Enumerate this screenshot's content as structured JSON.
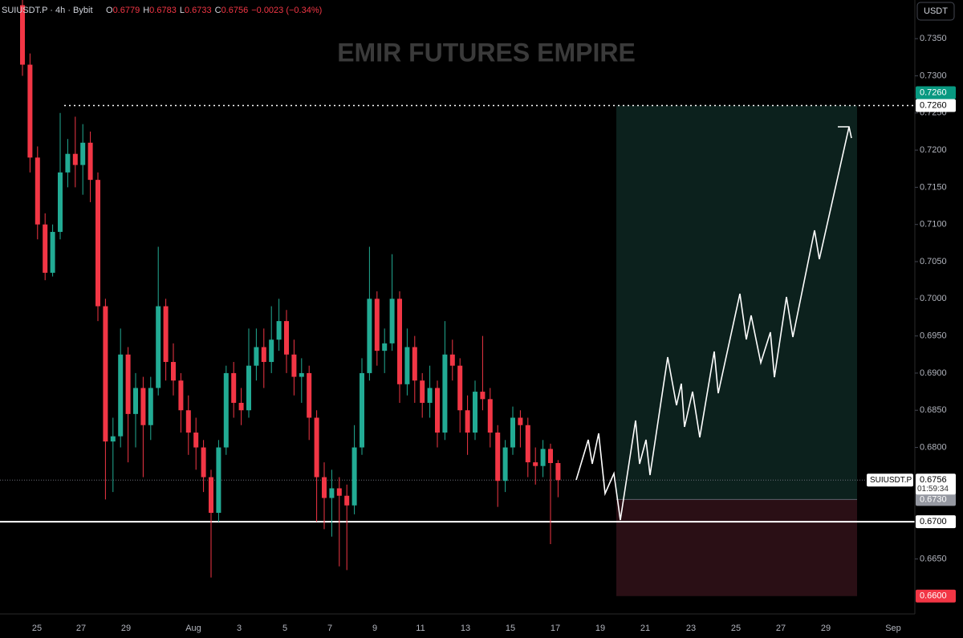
{
  "header": {
    "symbol": "SUIUSDT.P · 4h · Bybit",
    "ohlc": [
      {
        "label": "O",
        "value": "0.6779"
      },
      {
        "label": "H",
        "value": "0.6783"
      },
      {
        "label": "L",
        "value": "0.6733"
      },
      {
        "label": "C",
        "value": "0.6756"
      }
    ],
    "change": "−0.0023 (−0.34%)"
  },
  "watermark": "EMIR FUTURES EMPIRE",
  "currency": "USDT",
  "chart_data": {
    "type": "candlestick",
    "up_color": "#22ab94",
    "down_color": "#f23645",
    "ylim": [
      0.6576,
      0.7402
    ],
    "yticks": [
      {
        "value": 0.665,
        "label": "0.6650"
      },
      {
        "value": 0.68,
        "label": "0.6800"
      },
      {
        "value": 0.685,
        "label": "0.6850"
      },
      {
        "value": 0.69,
        "label": "0.6900"
      },
      {
        "value": 0.695,
        "label": "0.6950"
      },
      {
        "value": 0.7,
        "label": "0.7000"
      },
      {
        "value": 0.705,
        "label": "0.7050"
      },
      {
        "value": 0.71,
        "label": "0.7100"
      },
      {
        "value": 0.715,
        "label": "0.7150"
      },
      {
        "value": 0.72,
        "label": "0.7200"
      },
      {
        "value": 0.725,
        "label": "0.7250"
      },
      {
        "value": 0.73,
        "label": "0.7300"
      },
      {
        "value": 0.735,
        "label": "0.7350"
      }
    ],
    "xticks": [
      "25",
      "27",
      "29",
      "Aug",
      "3",
      "5",
      "7",
      "9",
      "11",
      "13",
      "15",
      "17",
      "19",
      "21",
      "23",
      "25",
      "27",
      "29",
      "Sep"
    ],
    "ohlc": [
      [
        0.7395,
        0.7402,
        0.73,
        0.7315
      ],
      [
        0.7315,
        0.733,
        0.717,
        0.719
      ],
      [
        0.719,
        0.7205,
        0.708,
        0.71
      ],
      [
        0.71,
        0.7115,
        0.7025,
        0.7035
      ],
      [
        0.7035,
        0.71,
        0.703,
        0.709
      ],
      [
        0.709,
        0.725,
        0.708,
        0.717
      ],
      [
        0.717,
        0.7215,
        0.715,
        0.7195
      ],
      [
        0.7195,
        0.7245,
        0.715,
        0.718
      ],
      [
        0.718,
        0.7235,
        0.714,
        0.721
      ],
      [
        0.721,
        0.7225,
        0.713,
        0.716
      ],
      [
        0.716,
        0.717,
        0.697,
        0.699
      ],
      [
        0.699,
        0.7,
        0.673,
        0.6808
      ],
      [
        0.6808,
        0.684,
        0.674,
        0.6815
      ],
      [
        0.6815,
        0.696,
        0.68,
        0.6925
      ],
      [
        0.6925,
        0.6935,
        0.678,
        0.6845
      ],
      [
        0.6845,
        0.69,
        0.68,
        0.688
      ],
      [
        0.688,
        0.6895,
        0.676,
        0.683
      ],
      [
        0.683,
        0.6895,
        0.681,
        0.688
      ],
      [
        0.688,
        0.707,
        0.687,
        0.699
      ],
      [
        0.699,
        0.7,
        0.689,
        0.6915
      ],
      [
        0.6915,
        0.694,
        0.687,
        0.689
      ],
      [
        0.689,
        0.69,
        0.682,
        0.685
      ],
      [
        0.685,
        0.687,
        0.679,
        0.682
      ],
      [
        0.682,
        0.684,
        0.677,
        0.68
      ],
      [
        0.68,
        0.681,
        0.674,
        0.676
      ],
      [
        0.676,
        0.677,
        0.6625,
        0.6712
      ],
      [
        0.6712,
        0.681,
        0.67,
        0.68
      ],
      [
        0.68,
        0.691,
        0.679,
        0.69
      ],
      [
        0.69,
        0.6915,
        0.684,
        0.686
      ],
      [
        0.686,
        0.688,
        0.683,
        0.685
      ],
      [
        0.685,
        0.696,
        0.684,
        0.691
      ],
      [
        0.691,
        0.696,
        0.689,
        0.6935
      ],
      [
        0.6935,
        0.696,
        0.688,
        0.6915
      ],
      [
        0.6915,
        0.699,
        0.69,
        0.6945
      ],
      [
        0.6945,
        0.7,
        0.693,
        0.697
      ],
      [
        0.697,
        0.6985,
        0.69,
        0.6925
      ],
      [
        0.6925,
        0.6945,
        0.687,
        0.6895
      ],
      [
        0.6895,
        0.692,
        0.686,
        0.69
      ],
      [
        0.69,
        0.691,
        0.681,
        0.684
      ],
      [
        0.684,
        0.685,
        0.67,
        0.676
      ],
      [
        0.676,
        0.678,
        0.669,
        0.6732
      ],
      [
        0.6732,
        0.677,
        0.668,
        0.6745
      ],
      [
        0.6745,
        0.676,
        0.664,
        0.6735
      ],
      [
        0.6735,
        0.675,
        0.6635,
        0.6722
      ],
      [
        0.6722,
        0.683,
        0.671,
        0.68
      ],
      [
        0.68,
        0.692,
        0.679,
        0.69
      ],
      [
        0.69,
        0.707,
        0.689,
        0.7
      ],
      [
        0.7,
        0.701,
        0.691,
        0.693
      ],
      [
        0.693,
        0.696,
        0.69,
        0.694
      ],
      [
        0.694,
        0.706,
        0.693,
        0.7
      ],
      [
        0.7,
        0.701,
        0.686,
        0.6885
      ],
      [
        0.6885,
        0.696,
        0.687,
        0.6935
      ],
      [
        0.6935,
        0.695,
        0.686,
        0.689
      ],
      [
        0.689,
        0.69,
        0.684,
        0.686
      ],
      [
        0.686,
        0.691,
        0.684,
        0.688
      ],
      [
        0.688,
        0.689,
        0.68,
        0.682
      ],
      [
        0.682,
        0.697,
        0.681,
        0.6925
      ],
      [
        0.6925,
        0.6945,
        0.689,
        0.691
      ],
      [
        0.691,
        0.692,
        0.682,
        0.685
      ],
      [
        0.685,
        0.687,
        0.679,
        0.682
      ],
      [
        0.682,
        0.689,
        0.681,
        0.6875
      ],
      [
        0.6875,
        0.695,
        0.685,
        0.6865
      ],
      [
        0.6865,
        0.688,
        0.68,
        0.682
      ],
      [
        0.682,
        0.683,
        0.672,
        0.6755
      ],
      [
        0.6755,
        0.681,
        0.674,
        0.68
      ],
      [
        0.68,
        0.6855,
        0.679,
        0.684
      ],
      [
        0.684,
        0.685,
        0.68,
        0.683
      ],
      [
        0.683,
        0.684,
        0.676,
        0.678
      ],
      [
        0.678,
        0.68,
        0.675,
        0.6775
      ],
      [
        0.6775,
        0.681,
        0.676,
        0.6798
      ],
      [
        0.6798,
        0.6805,
        0.667,
        0.6779
      ],
      [
        0.6779,
        0.6783,
        0.6733,
        0.6756
      ]
    ],
    "position": {
      "target": {
        "value": 0.726,
        "label": "0.7260"
      },
      "entry": {
        "value": 0.673,
        "label": "0.6730"
      },
      "stop": {
        "value": 0.66,
        "label": "0.6600"
      }
    },
    "levels": [
      {
        "value": 0.726,
        "label": "0.7260"
      },
      {
        "value": 0.67,
        "label": "0.6700"
      }
    ],
    "last_price": {
      "symbol": "SUIUSDT.P",
      "value": 0.6756,
      "label": "0.6756",
      "countdown": "01:59:34"
    }
  }
}
